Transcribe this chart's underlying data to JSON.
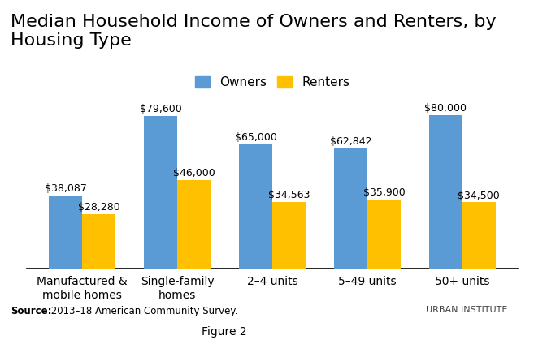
{
  "title": "Median Household Income of Owners and Renters, by\nHousing Type",
  "categories": [
    "Manufactured &\nmobile homes",
    "Single-family\nhomes",
    "2–4 units",
    "5–49 units",
    "50+ units"
  ],
  "owners": [
    38087,
    79600,
    65000,
    62842,
    80000
  ],
  "renters": [
    28280,
    46000,
    34563,
    35900,
    34500
  ],
  "owner_labels": [
    "$38,087",
    "$79,600",
    "$65,000",
    "$62,842",
    "$80,000"
  ],
  "renter_labels": [
    "$28,280",
    "$46,000",
    "$34,563",
    "$35,900",
    "$34,500"
  ],
  "owner_color": "#5B9BD5",
  "renter_color": "#FFC000",
  "background_color": "#FFFFFF",
  "title_fontsize": 16,
  "label_fontsize": 9,
  "tick_fontsize": 10,
  "legend_fontsize": 11,
  "source_text_bold": "Source:",
  "source_text_normal": " 2013–18 American Community Survey.",
  "figure_label": "Figure 2",
  "urban_institute": "URBAN INSTITUTE",
  "ymax": 90000,
  "bar_width": 0.35
}
